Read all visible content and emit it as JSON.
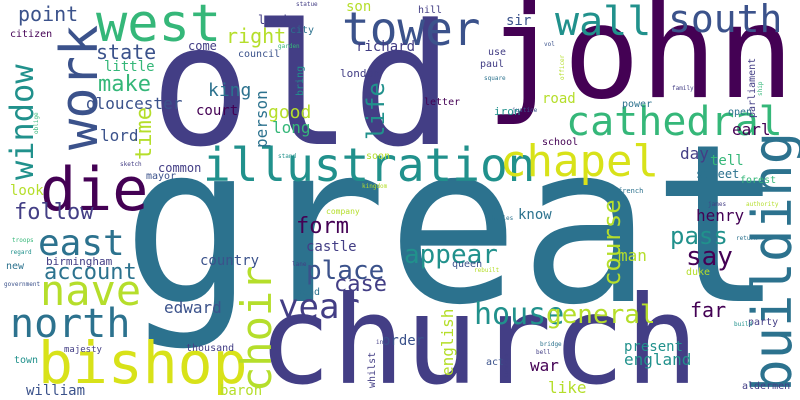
{
  "palette": {
    "purple_dark": "#440154",
    "indigo": "#3b528b",
    "slate_blue": "#433e85",
    "teal": "#21918c",
    "teal_blue": "#2c728e",
    "green": "#35b779",
    "lime": "#b5de2b",
    "yellow": "#d8e219"
  },
  "words": [
    {
      "text": "great",
      "color": "#2c728e"
    },
    {
      "text": "church",
      "color": "#433e85"
    },
    {
      "text": "old",
      "color": "#433e85"
    },
    {
      "text": "john",
      "color": "#440154"
    },
    {
      "text": "building",
      "color": "#2c728e"
    },
    {
      "text": "bishop",
      "color": "#d8e219"
    },
    {
      "text": "illustration",
      "color": "#21918c"
    },
    {
      "text": "west",
      "color": "#35b779"
    },
    {
      "text": "tower",
      "color": "#3b528b"
    },
    {
      "text": "cathedral",
      "color": "#35b779"
    },
    {
      "text": "chapel",
      "color": "#d8e219"
    },
    {
      "text": "work",
      "color": "#3b528b"
    },
    {
      "text": "die",
      "color": "#440154"
    },
    {
      "text": "wall",
      "color": "#21918c"
    },
    {
      "text": "south",
      "color": "#3b528b"
    },
    {
      "text": "window",
      "color": "#21918c"
    },
    {
      "text": "nave",
      "color": "#b5de2b"
    },
    {
      "text": "north",
      "color": "#2c728e"
    },
    {
      "text": "east",
      "color": "#2c728e"
    },
    {
      "text": "choir",
      "color": "#b5de2b"
    },
    {
      "text": "year",
      "color": "#433e85"
    },
    {
      "text": "house",
      "color": "#21918c"
    },
    {
      "text": "general",
      "color": "#b5de2b"
    },
    {
      "text": "place",
      "color": "#3b528b"
    },
    {
      "text": "appear",
      "color": "#21918c"
    },
    {
      "text": "form",
      "color": "#440154"
    },
    {
      "text": "case",
      "color": "#433e85"
    },
    {
      "text": "say",
      "color": "#440154"
    },
    {
      "text": "pass",
      "color": "#21918c"
    },
    {
      "text": "course",
      "color": "#b5de2b"
    },
    {
      "text": "account",
      "color": "#2c728e"
    },
    {
      "text": "follow",
      "color": "#433e85"
    },
    {
      "text": "make",
      "color": "#35b779"
    },
    {
      "text": "state",
      "color": "#3b528b"
    },
    {
      "text": "point",
      "color": "#3b528b"
    },
    {
      "text": "right",
      "color": "#b5de2b"
    },
    {
      "text": "richard",
      "color": "#433e85"
    },
    {
      "text": "life",
      "color": "#21918c"
    },
    {
      "text": "time",
      "color": "#b5de2b"
    },
    {
      "text": "king",
      "color": "#2c728e"
    },
    {
      "text": "gloucester",
      "color": "#3b528b"
    },
    {
      "text": "little",
      "color": "#35b779"
    },
    {
      "text": "lord",
      "color": "#3b528b"
    },
    {
      "text": "court",
      "color": "#440154"
    },
    {
      "text": "good",
      "color": "#b5de2b"
    },
    {
      "text": "long",
      "color": "#35b779"
    },
    {
      "text": "person",
      "color": "#2c728e"
    },
    {
      "text": "road",
      "color": "#b5de2b"
    },
    {
      "text": "earl",
      "color": "#440154"
    },
    {
      "text": "day",
      "color": "#433e85"
    },
    {
      "text": "tell",
      "color": "#35b779"
    },
    {
      "text": "street",
      "color": "#2c728e"
    },
    {
      "text": "henry",
      "color": "#440154"
    },
    {
      "text": "know",
      "color": "#2c728e"
    },
    {
      "text": "far",
      "color": "#440154"
    },
    {
      "text": "man",
      "color": "#b5de2b"
    },
    {
      "text": "country",
      "color": "#3b528b"
    },
    {
      "text": "castle",
      "color": "#433e85"
    },
    {
      "text": "edward",
      "color": "#3b528b"
    },
    {
      "text": "order",
      "color": "#3b528b"
    },
    {
      "text": "present",
      "color": "#21918c"
    },
    {
      "text": "england",
      "color": "#21918c"
    },
    {
      "text": "english",
      "color": "#b5de2b"
    },
    {
      "text": "war",
      "color": "#440154"
    },
    {
      "text": "like",
      "color": "#b5de2b"
    },
    {
      "text": "william",
      "color": "#3b528b"
    },
    {
      "text": "baron",
      "color": "#b5de2b"
    },
    {
      "text": "thousand",
      "color": "#433e85"
    },
    {
      "text": "birmingham",
      "color": "#433e85"
    },
    {
      "text": "new",
      "color": "#2c728e"
    },
    {
      "text": "look",
      "color": "#b5de2b"
    },
    {
      "text": "common",
      "color": "#433e85"
    },
    {
      "text": "mayor",
      "color": "#3b528b"
    },
    {
      "text": "london",
      "color": "#433e85"
    },
    {
      "text": "land",
      "color": "#433e85"
    },
    {
      "text": "come",
      "color": "#433e85"
    },
    {
      "text": "son",
      "color": "#b5de2b"
    },
    {
      "text": "sir",
      "color": "#3b528b"
    },
    {
      "text": "hill",
      "color": "#433e85"
    },
    {
      "text": "paul",
      "color": "#433e85"
    },
    {
      "text": "use",
      "color": "#433e85"
    },
    {
      "text": "iron",
      "color": "#21918c"
    },
    {
      "text": "letter",
      "color": "#440154"
    },
    {
      "text": "school",
      "color": "#440154"
    },
    {
      "text": "power",
      "color": "#2c728e"
    },
    {
      "text": "open",
      "color": "#2c728e"
    },
    {
      "text": "parliament",
      "color": "#433e85"
    },
    {
      "text": "forest",
      "color": "#35b779"
    },
    {
      "text": "queen",
      "color": "#3b528b"
    },
    {
      "text": "duke",
      "color": "#b5de2b"
    },
    {
      "text": "party",
      "color": "#433e85"
    },
    {
      "text": "soon",
      "color": "#b5de2b"
    },
    {
      "text": "city",
      "color": "#2c728e"
    },
    {
      "text": "council",
      "color": "#3b528b"
    },
    {
      "text": "citizen",
      "color": "#440154"
    },
    {
      "text": "bring",
      "color": "#21918c"
    },
    {
      "text": "send",
      "color": "#2c728e"
    },
    {
      "text": "majesty",
      "color": "#433e85"
    },
    {
      "text": "town",
      "color": "#21918c"
    },
    {
      "text": "whilst",
      "color": "#433e85"
    },
    {
      "text": "act",
      "color": "#3b528b"
    },
    {
      "text": "aldermen",
      "color": "#433e85"
    },
    {
      "text": "stand",
      "color": "#21918c"
    },
    {
      "text": "company",
      "color": "#b5de2b"
    },
    {
      "text": "french",
      "color": "#2c728e"
    },
    {
      "text": "bridge",
      "color": "#2c728e"
    },
    {
      "text": "build",
      "color": "#21918c"
    },
    {
      "text": "troops",
      "color": "#35b779"
    },
    {
      "text": "square",
      "color": "#2c728e"
    },
    {
      "text": "family",
      "color": "#433e85"
    },
    {
      "text": "officer",
      "color": "#b5de2b"
    },
    {
      "text": "ship",
      "color": "#35b779"
    },
    {
      "text": "vol",
      "color": "#3b528b"
    },
    {
      "text": "garden",
      "color": "#35b779"
    },
    {
      "text": "oblige",
      "color": "#35b779"
    },
    {
      "text": "sketch",
      "color": "#433e85"
    },
    {
      "text": "regard",
      "color": "#21918c"
    },
    {
      "text": "government",
      "color": "#3b528b"
    },
    {
      "text": "kingdom",
      "color": "#b5de2b"
    },
    {
      "text": "lane",
      "color": "#433e85"
    },
    {
      "text": "james",
      "color": "#433e85"
    },
    {
      "text": "authority",
      "color": "#b5de2b"
    },
    {
      "text": "charles",
      "color": "#2c728e"
    },
    {
      "text": "inn",
      "color": "#433e85"
    },
    {
      "text": "bell",
      "color": "#433e85"
    },
    {
      "text": "commons",
      "color": "#433e85"
    },
    {
      "text": "rebuilt",
      "color": "#b5de2b"
    },
    {
      "text": "justice",
      "color": "#3b528b"
    },
    {
      "text": "statue",
      "color": "#433e85"
    },
    {
      "text": "return",
      "color": "#2c728e"
    }
  ]
}
